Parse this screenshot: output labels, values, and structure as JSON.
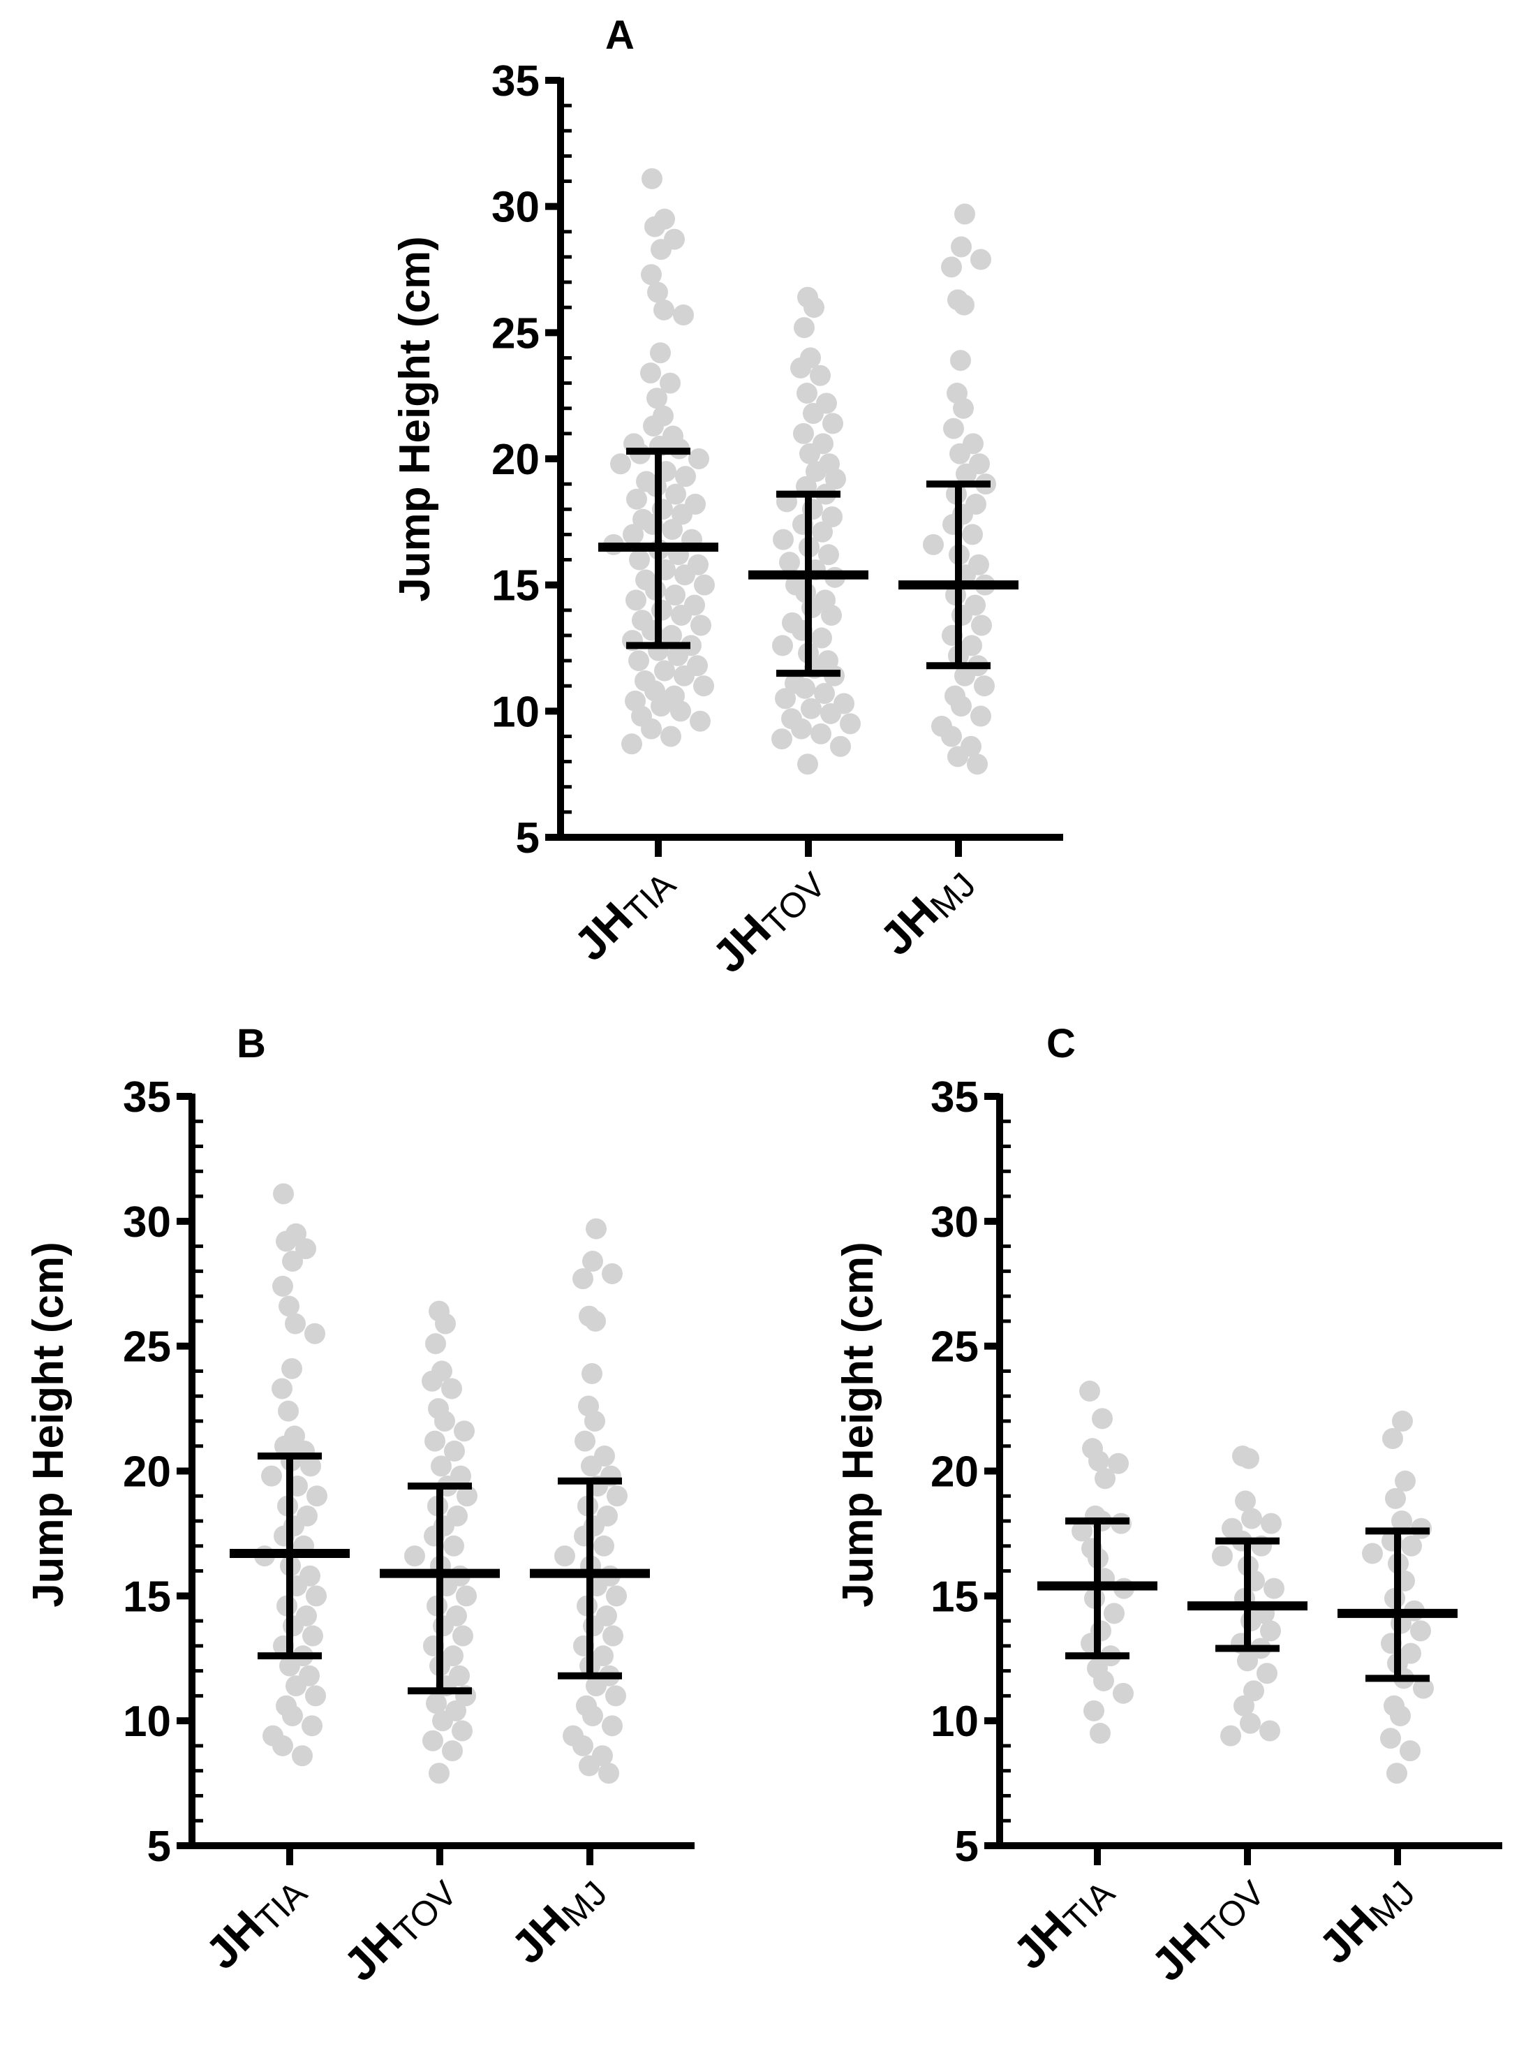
{
  "colors": {
    "points": "#d3d3d3",
    "lines": "#000000",
    "background": "#ffffff"
  },
  "chart_data": [
    {
      "type": "scatter",
      "panel": "A",
      "title": "A",
      "ylabel": "Jump Height (cm)",
      "ylim": [
        5,
        35
      ],
      "yticks": [
        5,
        10,
        15,
        20,
        25,
        30,
        35
      ],
      "categories": [
        {
          "main": "JH",
          "sub": "TIA"
        },
        {
          "main": "JH",
          "sub": "TOV"
        },
        {
          "main": "JH",
          "sub": "MJ"
        }
      ],
      "series": [
        {
          "name": "JH TIA",
          "mean": 16.5,
          "sd_low": 12.6,
          "sd_high": 20.3,
          "values": [
            31.1,
            29.5,
            29.2,
            28.7,
            28.3,
            27.3,
            26.6,
            25.9,
            25.7,
            24.2,
            23.4,
            23.0,
            22.4,
            21.7,
            21.3,
            20.9,
            20.6,
            20.5,
            20.4,
            20.2,
            20.0,
            19.8,
            19.5,
            19.3,
            19.1,
            18.9,
            18.6,
            18.4,
            18.2,
            18.0,
            17.8,
            17.6,
            17.4,
            17.2,
            17.0,
            16.8,
            16.6,
            16.4,
            16.2,
            16.0,
            15.8,
            15.6,
            15.4,
            15.2,
            15.0,
            14.8,
            14.6,
            14.4,
            14.2,
            14.0,
            13.8,
            13.6,
            13.4,
            13.2,
            13.0,
            12.8,
            12.6,
            12.4,
            12.2,
            12.0,
            11.8,
            11.6,
            11.4,
            11.2,
            11.0,
            10.8,
            10.6,
            10.4,
            10.2,
            10.0,
            9.8,
            9.6,
            9.3,
            9.0,
            8.7
          ]
        },
        {
          "name": "JH TOV",
          "mean": 15.4,
          "sd_low": 11.5,
          "sd_high": 18.6,
          "values": [
            26.4,
            26.0,
            25.2,
            24.0,
            23.6,
            23.3,
            22.6,
            22.2,
            21.8,
            21.4,
            21.0,
            20.6,
            20.2,
            19.8,
            19.5,
            19.2,
            18.9,
            18.6,
            18.3,
            18.0,
            17.7,
            17.4,
            17.1,
            16.8,
            16.5,
            16.2,
            15.9,
            15.6,
            15.3,
            15.0,
            14.7,
            14.4,
            14.1,
            13.8,
            13.5,
            13.2,
            12.9,
            12.6,
            12.3,
            12.0,
            11.7,
            11.4,
            11.1,
            10.9,
            10.7,
            10.5,
            10.3,
            10.1,
            9.9,
            9.7,
            9.5,
            9.3,
            9.1,
            8.9,
            8.6,
            7.9
          ]
        },
        {
          "name": "JH MJ",
          "mean": 15.0,
          "sd_low": 11.8,
          "sd_high": 19.0,
          "values": [
            29.7,
            28.4,
            27.9,
            27.6,
            26.3,
            26.1,
            23.9,
            22.6,
            22.0,
            21.2,
            20.6,
            20.2,
            19.8,
            19.4,
            19.0,
            18.6,
            18.2,
            17.8,
            17.4,
            17.0,
            16.6,
            16.2,
            15.8,
            15.4,
            15.0,
            14.6,
            14.2,
            13.8,
            13.4,
            13.0,
            12.6,
            12.2,
            11.8,
            11.4,
            11.0,
            10.6,
            10.2,
            9.8,
            9.4,
            9.0,
            8.6,
            8.2,
            7.9
          ]
        }
      ]
    },
    {
      "type": "scatter",
      "panel": "B",
      "title": "B",
      "ylabel": "Jump Height (cm)",
      "ylim": [
        5,
        35
      ],
      "yticks": [
        5,
        10,
        15,
        20,
        25,
        30,
        35
      ],
      "categories": [
        {
          "main": "JH",
          "sub": "TIA"
        },
        {
          "main": "JH",
          "sub": "TOV"
        },
        {
          "main": "JH",
          "sub": "MJ"
        }
      ],
      "series": [
        {
          "name": "JH TIA",
          "mean": 16.7,
          "sd_low": 12.6,
          "sd_high": 20.6,
          "values": [
            31.1,
            29.5,
            29.2,
            28.9,
            28.4,
            27.4,
            26.6,
            25.9,
            25.5,
            24.1,
            23.3,
            22.4,
            21.4,
            21.0,
            20.8,
            20.4,
            20.2,
            19.8,
            19.4,
            19.0,
            18.6,
            18.2,
            17.8,
            17.4,
            17.0,
            16.6,
            16.2,
            15.8,
            15.4,
            15.0,
            14.6,
            14.2,
            13.8,
            13.4,
            13.0,
            12.6,
            12.2,
            11.8,
            11.4,
            11.0,
            10.6,
            10.2,
            9.8,
            9.4,
            9.0,
            8.6
          ]
        },
        {
          "name": "JH TOV",
          "mean": 15.9,
          "sd_low": 11.2,
          "sd_high": 19.4,
          "values": [
            26.4,
            25.9,
            25.1,
            24.0,
            23.6,
            23.3,
            22.5,
            22.0,
            21.6,
            21.2,
            20.8,
            20.2,
            19.8,
            19.4,
            19.0,
            18.6,
            18.2,
            17.8,
            17.4,
            17.0,
            16.6,
            16.2,
            15.8,
            15.4,
            15.0,
            14.6,
            14.2,
            13.8,
            13.4,
            13.0,
            12.6,
            12.2,
            11.8,
            11.4,
            11.0,
            10.7,
            10.4,
            10.0,
            9.6,
            9.2,
            8.8,
            7.9
          ]
        },
        {
          "name": "JH MJ",
          "mean": 15.9,
          "sd_low": 11.8,
          "sd_high": 19.6,
          "values": [
            29.7,
            28.4,
            27.9,
            27.7,
            26.2,
            26.0,
            23.9,
            22.6,
            22.0,
            21.2,
            20.6,
            20.2,
            19.8,
            19.4,
            19.0,
            18.6,
            18.2,
            17.8,
            17.4,
            17.0,
            16.6,
            16.2,
            15.8,
            15.4,
            15.0,
            14.6,
            14.2,
            13.8,
            13.4,
            13.0,
            12.6,
            12.2,
            11.8,
            11.4,
            11.0,
            10.6,
            10.2,
            9.8,
            9.4,
            9.0,
            8.6,
            8.2,
            7.9
          ]
        }
      ]
    },
    {
      "type": "scatter",
      "panel": "C",
      "title": "C",
      "ylabel": "Jump Height (cm)",
      "ylim": [
        5,
        35
      ],
      "yticks": [
        5,
        10,
        15,
        20,
        25,
        30,
        35
      ],
      "categories": [
        {
          "main": "JH",
          "sub": "TIA"
        },
        {
          "main": "JH",
          "sub": "TOV"
        },
        {
          "main": "JH",
          "sub": "MJ"
        }
      ],
      "series": [
        {
          "name": "JH TIA",
          "mean": 15.4,
          "sd_low": 12.6,
          "sd_high": 18.0,
          "values": [
            23.2,
            22.1,
            20.9,
            20.4,
            20.3,
            19.7,
            18.2,
            18.0,
            17.9,
            17.6,
            16.9,
            16.5,
            15.7,
            15.3,
            14.9,
            14.3,
            13.6,
            13.1,
            12.6,
            12.1,
            11.6,
            11.1,
            10.4,
            9.5
          ]
        },
        {
          "name": "JH TOV",
          "mean": 14.6,
          "sd_low": 12.9,
          "sd_high": 17.2,
          "values": [
            20.6,
            20.5,
            18.8,
            18.1,
            17.9,
            17.7,
            17.2,
            17.0,
            16.6,
            16.2,
            15.6,
            15.3,
            14.9,
            14.3,
            14.0,
            13.6,
            13.1,
            12.9,
            12.4,
            11.9,
            11.2,
            10.6,
            9.9,
            9.6,
            9.4
          ]
        },
        {
          "name": "JH MJ",
          "mean": 14.3,
          "sd_low": 11.7,
          "sd_high": 17.6,
          "values": [
            22.0,
            21.3,
            19.6,
            18.9,
            18.0,
            17.7,
            17.2,
            17.0,
            16.7,
            16.3,
            15.6,
            14.9,
            14.4,
            13.9,
            13.6,
            13.1,
            12.7,
            12.3,
            11.7,
            11.3,
            10.6,
            10.2,
            9.3,
            8.8,
            7.9
          ]
        }
      ]
    }
  ]
}
